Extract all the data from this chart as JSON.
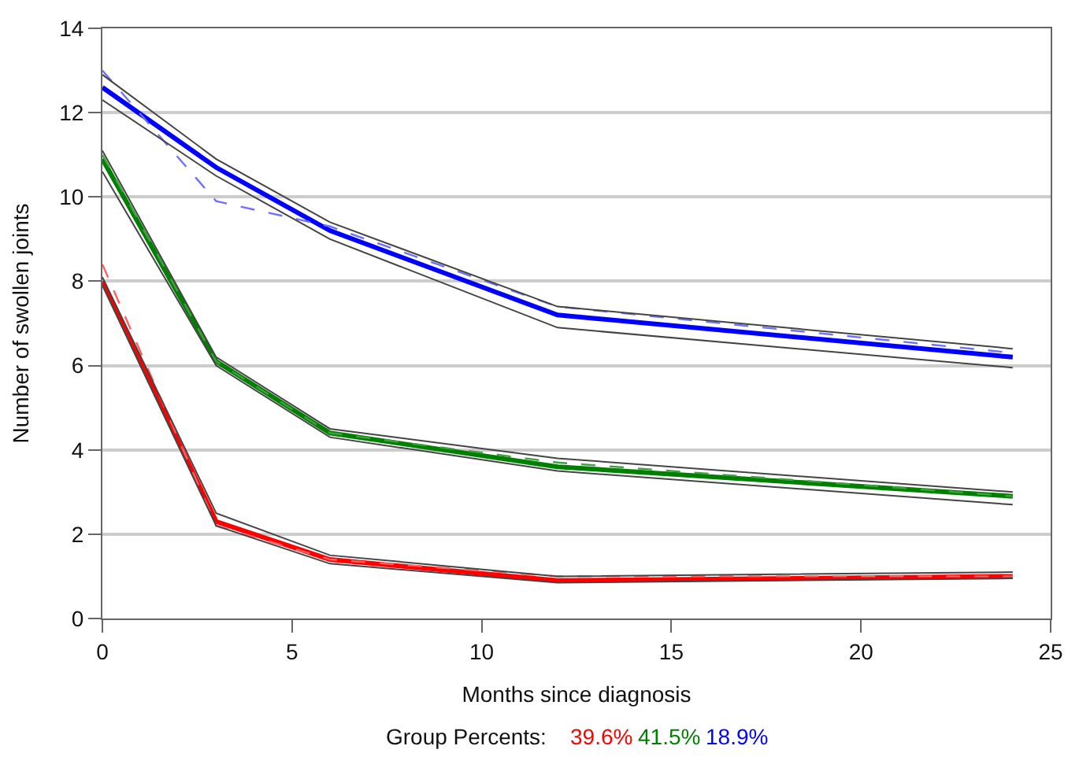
{
  "chart_data": {
    "type": "line",
    "xlabel": "Months since diagnosis",
    "ylabel": "Number of swollen joints",
    "legend_title": "Group Percents:",
    "x": [
      0,
      3,
      6,
      12,
      24
    ],
    "series": [
      {
        "name": "39.6%",
        "color": "#ff0000",
        "values": [
          8.0,
          2.3,
          1.4,
          0.9,
          1.0
        ]
      },
      {
        "name": "41.5%",
        "color": "#008000",
        "values": [
          10.9,
          6.1,
          4.4,
          3.6,
          2.9
        ]
      },
      {
        "name": "18.9%",
        "color": "#0000ff",
        "values": [
          12.6,
          10.7,
          9.2,
          7.2,
          6.2
        ]
      },
      {
        "color": "#ff6060",
        "line_style": "dashed",
        "values": [
          8.4,
          2.2,
          1.4,
          1.0,
          1.0
        ]
      },
      {
        "color": "#40a040",
        "line_style": "dashed",
        "values": [
          11.0,
          6.1,
          4.4,
          3.7,
          2.9
        ]
      },
      {
        "color": "#7070ff",
        "line_style": "dashed",
        "values": [
          13.0,
          9.9,
          9.3,
          7.4,
          6.3
        ]
      },
      {
        "color": "#444444",
        "values": [
          7.9,
          2.2,
          1.3,
          0.85,
          0.95
        ]
      },
      {
        "color": "#444444",
        "values": [
          8.1,
          2.5,
          1.5,
          1.0,
          1.1
        ]
      },
      {
        "color": "#444444",
        "values": [
          10.6,
          6.0,
          4.3,
          3.5,
          2.7
        ]
      },
      {
        "color": "#444444",
        "values": [
          11.1,
          6.2,
          4.5,
          3.8,
          3.0
        ]
      },
      {
        "color": "#444444",
        "values": [
          12.3,
          10.5,
          9.0,
          6.9,
          5.95
        ]
      },
      {
        "color": "#444444",
        "values": [
          12.9,
          10.9,
          9.4,
          7.4,
          6.4
        ]
      }
    ],
    "xlim": [
      0,
      25
    ],
    "xticks": [
      0,
      5,
      10,
      15,
      20,
      25
    ],
    "ylim": [
      0,
      14
    ],
    "yticks": [
      0,
      2,
      4,
      6,
      8,
      10,
      12,
      14
    ],
    "grid": "y",
    "legend": "bottom",
    "marker": "none",
    "line_style": "solid"
  }
}
